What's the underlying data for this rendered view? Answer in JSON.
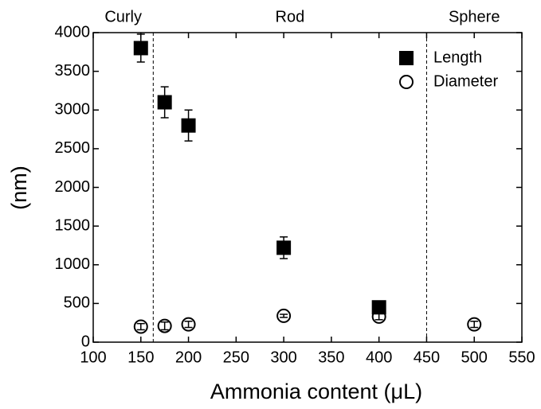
{
  "chart_data": {
    "type": "scatter",
    "xlabel": "Ammonia content (μL)",
    "ylabel": "(nm)",
    "xlim": [
      100,
      550
    ],
    "xticks": [
      100,
      150,
      200,
      250,
      300,
      350,
      400,
      450,
      500,
      550
    ],
    "ylim": [
      0,
      4000
    ],
    "yticks": [
      0,
      500,
      1000,
      1500,
      2000,
      2500,
      3000,
      3500,
      4000
    ],
    "legend": "upper right",
    "regions": [
      "Curly",
      "Rod",
      "Sphere"
    ],
    "dividers": [
      163,
      450
    ],
    "series": [
      {
        "name": "Length",
        "marker": "square",
        "color": "#000000",
        "x": [
          150,
          175,
          200,
          300,
          400
        ],
        "values": [
          3800,
          3100,
          2800,
          1220,
          450
        ],
        "errors": [
          180,
          200,
          200,
          140,
          50
        ]
      },
      {
        "name": "Diameter",
        "marker": "circle",
        "color": "#000000",
        "x": [
          150,
          175,
          200,
          300,
          400,
          500
        ],
        "values": [
          200,
          210,
          230,
          340,
          330,
          230
        ],
        "errors": [
          40,
          50,
          40,
          20,
          40,
          40
        ]
      }
    ]
  }
}
